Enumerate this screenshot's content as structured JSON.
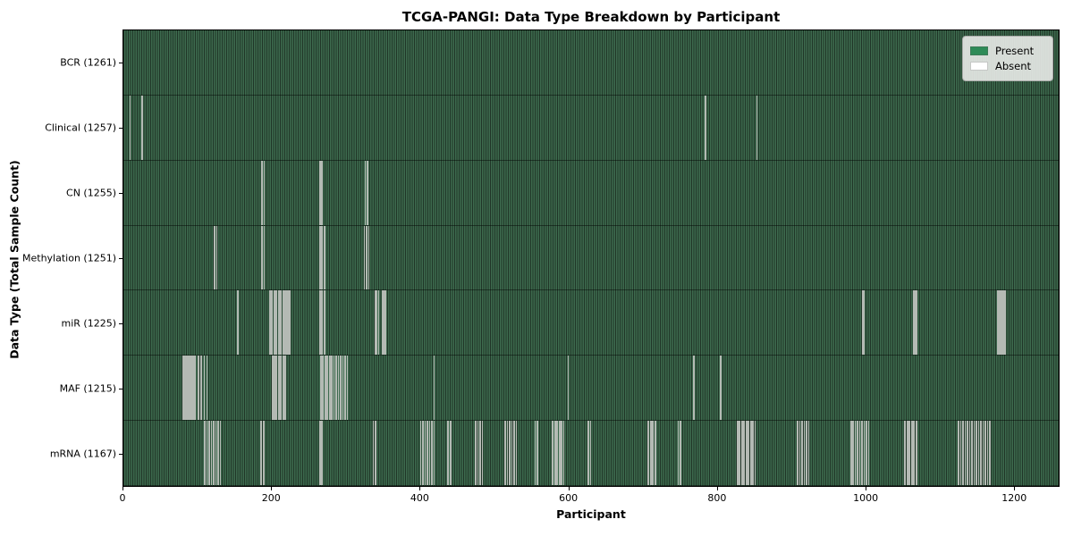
{
  "title": "TCGA-PANGI: Data Type Breakdown by Participant",
  "legend": {
    "present_label": "Present",
    "absent_label": "Absent",
    "position": "upper right"
  },
  "colors": {
    "present": "#2e8b57",
    "absent": "#ffffff",
    "plot_stripe_dark": "#203527",
    "plot_stripe_light": "#3d6a4e",
    "absent_line": "#b4bab4",
    "legend_bg": "#e9ebe9"
  },
  "chart_data": {
    "type": "heatmap",
    "title": "TCGA-PANGI: Data Type Breakdown by Participant",
    "xlabel": "Participant",
    "ylabel": "Data Type (Total Sample Count)",
    "x_range": [
      0,
      1261
    ],
    "x_ticks": [
      0,
      200,
      400,
      600,
      800,
      1000,
      1200
    ],
    "grid": false,
    "legend": [
      "Present",
      "Absent"
    ],
    "legend_position": "upper right",
    "rows": [
      {
        "label": "BCR (1261)",
        "name": "BCR",
        "total": 1261,
        "absent_count": 0,
        "absent_participants": []
      },
      {
        "label": "Clinical (1257)",
        "name": "Clinical",
        "total": 1257,
        "absent_count": 4,
        "absent_participants": [
          8,
          24,
          784,
          853
        ]
      },
      {
        "label": "CN (1255)",
        "name": "CN",
        "total": 1255,
        "absent_count": 6,
        "absent_participants": [
          186,
          189,
          264,
          267,
          325,
          328
        ]
      },
      {
        "label": "Methylation (1251)",
        "name": "Methylation",
        "total": 1251,
        "absent_count": 10,
        "absent_participants": [
          122,
          125,
          186,
          189,
          264,
          267,
          270,
          324,
          327,
          330
        ]
      },
      {
        "label": "miR (1225)",
        "name": "miR",
        "total": 1225,
        "absent_count": 36,
        "absent_participants": [
          153,
          196,
          198,
          200,
          202,
          204,
          206,
          208,
          210,
          212,
          214,
          216,
          218,
          220,
          222,
          224,
          264,
          267,
          270,
          339,
          341,
          343,
          349,
          351,
          353,
          996,
          998,
          1064,
          1066,
          1068,
          1178,
          1180,
          1182,
          1184,
          1186,
          1188
        ]
      },
      {
        "label": "MAF (1215)",
        "name": "MAF",
        "total": 1215,
        "absent_count": 46,
        "absent_participants": [
          80,
          82,
          84,
          86,
          88,
          90,
          92,
          94,
          96,
          100,
          104,
          108,
          112,
          200,
          201,
          202,
          204,
          205,
          206,
          208,
          209,
          210,
          212,
          214,
          216,
          218,
          265,
          266,
          268,
          271,
          272,
          274,
          277,
          278,
          280,
          283,
          286,
          289,
          292,
          295,
          298,
          301,
          418,
          599,
          768,
          804
        ]
      },
      {
        "label": "mRNA (1167)",
        "name": "mRNA",
        "total": 1167,
        "absent_count": 94,
        "absent_participants": [
          109,
          112,
          115,
          118,
          121,
          124,
          127,
          130,
          185,
          188,
          264,
          267,
          336,
          339,
          400,
          403,
          406,
          409,
          412,
          415,
          418,
          437,
          440,
          474,
          477,
          480,
          483,
          514,
          517,
          520,
          523,
          526,
          529,
          554,
          557,
          578,
          581,
          584,
          587,
          590,
          593,
          626,
          629,
          707,
          710,
          713,
          716,
          747,
          750,
          827,
          830,
          833,
          836,
          839,
          842,
          845,
          848,
          851,
          908,
          911,
          914,
          917,
          920,
          923,
          980,
          983,
          986,
          989,
          992,
          995,
          998,
          1001,
          1004,
          1053,
          1056,
          1059,
          1062,
          1065,
          1068,
          1125,
          1128,
          1131,
          1134,
          1137,
          1140,
          1143,
          1146,
          1149,
          1152,
          1155,
          1158,
          1161,
          1164,
          1167
        ]
      }
    ]
  }
}
